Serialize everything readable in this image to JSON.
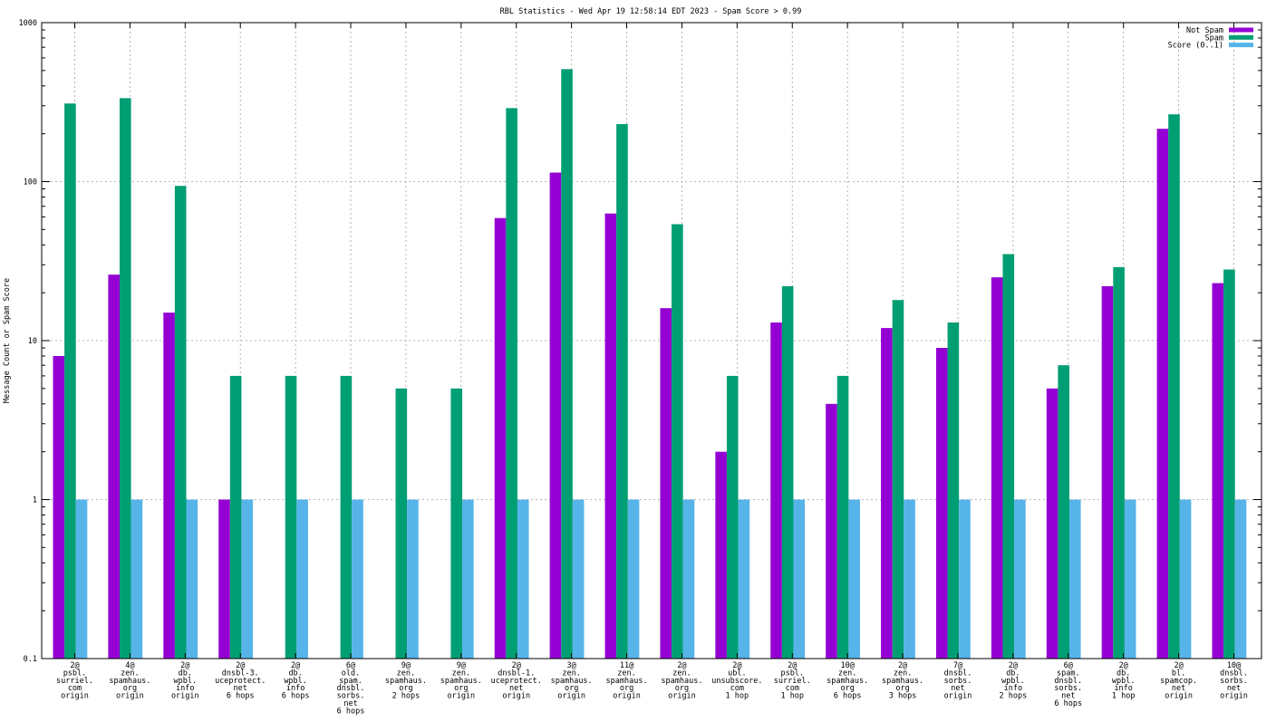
{
  "chart_data": {
    "type": "bar",
    "title": "RBL Statistics - Wed Apr 19 12:58:14 EDT 2023 - Spam Score > 0.99",
    "xlabel": "",
    "ylabel": "Message Count or Spam Score",
    "yscale": "log",
    "ylim": [
      0.1,
      1000
    ],
    "yticks": [
      "0.1",
      "1",
      "10",
      "100",
      "1000"
    ],
    "grid": true,
    "legend_position": "top-right",
    "categories": [
      [
        "2@",
        "psbl.",
        "surriel.",
        "com",
        "origin"
      ],
      [
        "4@",
        "zen.",
        "spamhaus.",
        "org",
        "origin"
      ],
      [
        "2@",
        "db.",
        "wpbl.",
        "info",
        "origin"
      ],
      [
        "2@",
        "dnsbl-3.",
        "uceprotect.",
        "net",
        "6 hops"
      ],
      [
        "2@",
        "db.",
        "wpbl.",
        "info",
        "6 hops"
      ],
      [
        "6@",
        "old.",
        "spam.",
        "dnsbl.",
        "sorbs.",
        "net",
        "6 hops"
      ],
      [
        "9@",
        "zen.",
        "spamhaus.",
        "org",
        "2 hops"
      ],
      [
        "9@",
        "zen.",
        "spamhaus.",
        "org",
        "origin"
      ],
      [
        "2@",
        "dnsbl-1.",
        "uceprotect.",
        "net",
        "origin"
      ],
      [
        "3@",
        "zen.",
        "spamhaus.",
        "org",
        "origin"
      ],
      [
        "11@",
        "zen.",
        "spamhaus.",
        "org",
        "origin"
      ],
      [
        "2@",
        "zen.",
        "spamhaus.",
        "org",
        "origin"
      ],
      [
        "2@",
        "ubl.",
        "unsubscore.",
        "com",
        "1 hop"
      ],
      [
        "2@",
        "psbl.",
        "surriel.",
        "com",
        "1 hop"
      ],
      [
        "10@",
        "zen.",
        "spamhaus.",
        "org",
        "6 hops"
      ],
      [
        "2@",
        "zen.",
        "spamhaus.",
        "org",
        "3 hops"
      ],
      [
        "7@",
        "dnsbl.",
        "sorbs.",
        "net",
        "origin"
      ],
      [
        "2@",
        "db.",
        "wpbl.",
        "info",
        "2 hops"
      ],
      [
        "6@",
        "spam.",
        "dnsbl.",
        "sorbs.",
        "net",
        "6 hops"
      ],
      [
        "2@",
        "db.",
        "wpbl.",
        "info",
        "1 hop"
      ],
      [
        "2@",
        "bl.",
        "spamcop.",
        "net",
        "origin"
      ],
      [
        "10@",
        "dnsbl.",
        "sorbs.",
        "net",
        "origin"
      ]
    ],
    "series": [
      {
        "name": "Not Spam",
        "color": "#9400d3",
        "values": [
          8,
          26,
          15,
          1,
          0,
          0,
          0,
          0,
          59,
          114,
          63,
          16,
          2,
          13,
          4,
          12,
          9,
          25,
          5,
          22,
          215,
          23
        ]
      },
      {
        "name": "Spam",
        "color": "#009e73",
        "values": [
          310,
          335,
          94,
          6,
          6,
          6,
          5,
          5,
          290,
          510,
          230,
          54,
          6,
          22,
          6,
          18,
          13,
          35,
          7,
          29,
          265,
          28
        ]
      },
      {
        "name": "Score (0..1)",
        "color": "#56b4e9",
        "values": [
          1,
          1,
          1,
          1,
          1,
          1,
          1,
          1,
          1,
          1,
          1,
          1,
          1,
          1,
          1,
          1,
          1,
          1,
          1,
          1,
          1,
          1
        ]
      }
    ]
  }
}
